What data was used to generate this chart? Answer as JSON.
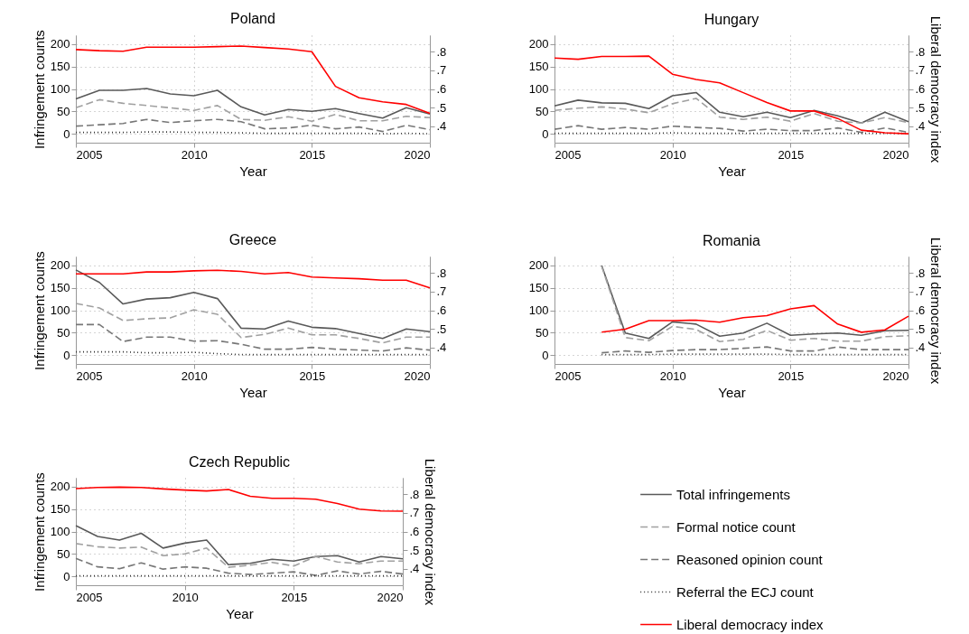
{
  "chart_data": [
    {
      "type": "line",
      "title": "Poland",
      "xlabel": "Year",
      "ylabel": "Infringement counts",
      "x": [
        2005,
        2006,
        2007,
        2008,
        2009,
        2010,
        2011,
        2012,
        2013,
        2014,
        2015,
        2016,
        2017,
        2018,
        2019,
        2020
      ],
      "xlim": [
        2005,
        2020
      ],
      "xticks": [
        2005,
        2010,
        2015,
        2020
      ],
      "ylim": [
        -20,
        220
      ],
      "yticks": [
        0,
        50,
        100,
        150,
        200
      ],
      "y2lim": [
        0.312,
        0.888
      ],
      "y2ticks": [
        {
          "value": 0.4,
          "label": ".4"
        },
        {
          "value": 0.5,
          "label": ".5"
        },
        {
          "value": 0.6,
          "label": ".6"
        },
        {
          "value": 0.7,
          "label": ".7"
        },
        {
          "value": 0.8,
          "label": ".8"
        }
      ],
      "grid": true,
      "legend": false,
      "series": [
        {
          "color": "#595959",
          "line_style": "solid",
          "values": [
            78,
            97,
            97,
            101,
            89,
            85,
            97,
            60,
            42,
            54,
            50,
            56,
            45,
            35,
            58,
            44
          ]
        },
        {
          "color": "#a0a0a0",
          "line_style": "dashed",
          "values": [
            58,
            76,
            68,
            63,
            58,
            52,
            63,
            32,
            30,
            38,
            28,
            43,
            29,
            29,
            39,
            36
          ]
        },
        {
          "color": "#777777",
          "line_style": "dashed",
          "values": [
            17,
            20,
            23,
            32,
            25,
            29,
            32,
            27,
            11,
            13,
            19,
            11,
            15,
            5,
            19,
            9
          ]
        },
        {
          "color": "#333333",
          "line_style": "dotted",
          "values": [
            3,
            3,
            3,
            4,
            4,
            3,
            3,
            2,
            1,
            1,
            1,
            1,
            1,
            0,
            1,
            0
          ]
        },
        {
          "color": "#ff0000",
          "line_style": "solid",
          "axis": "y2",
          "values": [
            0.811,
            0.805,
            0.802,
            0.824,
            0.824,
            0.824,
            0.827,
            0.83,
            0.822,
            0.814,
            0.8,
            0.614,
            0.553,
            0.531,
            0.517,
            0.469
          ]
        }
      ]
    },
    {
      "type": "line",
      "title": "Hungary",
      "xlabel": "Year",
      "y2label": "Liberal democracy index",
      "x": [
        2005,
        2006,
        2007,
        2008,
        2009,
        2010,
        2011,
        2012,
        2013,
        2014,
        2015,
        2016,
        2017,
        2018,
        2019,
        2020
      ],
      "xlim": [
        2005,
        2020
      ],
      "xticks": [
        2005,
        2010,
        2015,
        2020
      ],
      "ylim": [
        -20,
        220
      ],
      "yticks": [
        0,
        50,
        100,
        150,
        200
      ],
      "y2lim": [
        0.312,
        0.888
      ],
      "y2ticks": [
        {
          "value": 0.4,
          "label": ".4"
        },
        {
          "value": 0.5,
          "label": ".5"
        },
        {
          "value": 0.6,
          "label": ".6"
        },
        {
          "value": 0.7,
          "label": ".7"
        },
        {
          "value": 0.8,
          "label": ".8"
        }
      ],
      "grid": true,
      "legend": false,
      "series": [
        {
          "color": "#595959",
          "line_style": "solid",
          "values": [
            62,
            75,
            69,
            68,
            56,
            85,
            92,
            48,
            38,
            48,
            36,
            52,
            40,
            24,
            48,
            27
          ]
        },
        {
          "color": "#a0a0a0",
          "line_style": "dashed",
          "values": [
            52,
            57,
            60,
            55,
            47,
            67,
            79,
            37,
            32,
            37,
            28,
            45,
            28,
            24,
            36,
            25
          ]
        },
        {
          "color": "#777777",
          "line_style": "dashed",
          "values": [
            10,
            18,
            10,
            14,
            10,
            17,
            14,
            12,
            6,
            10,
            7,
            7,
            13,
            3,
            13,
            3
          ]
        },
        {
          "color": "#333333",
          "line_style": "dotted",
          "values": [
            1,
            1,
            1,
            1,
            1,
            2,
            1,
            1,
            1,
            1,
            1,
            1,
            1,
            1,
            1,
            1
          ]
        },
        {
          "color": "#ff0000",
          "line_style": "solid",
          "axis": "y2",
          "values": [
            0.766,
            0.759,
            0.774,
            0.774,
            0.776,
            0.679,
            0.651,
            0.633,
            0.58,
            0.527,
            0.482,
            0.482,
            0.442,
            0.379,
            0.365,
            0.36
          ]
        }
      ]
    },
    {
      "type": "line",
      "title": "Greece",
      "xlabel": "Year",
      "ylabel": "Infringement counts",
      "x": [
        2005,
        2006,
        2007,
        2008,
        2009,
        2010,
        2011,
        2012,
        2013,
        2014,
        2015,
        2016,
        2017,
        2018,
        2019,
        2020
      ],
      "xlim": [
        2005,
        2020
      ],
      "xticks": [
        2005,
        2010,
        2015,
        2020
      ],
      "ylim": [
        -20,
        220
      ],
      "yticks": [
        0,
        50,
        100,
        150,
        200
      ],
      "y2lim": [
        0.312,
        0.888
      ],
      "y2ticks": [
        {
          "value": 0.4,
          "label": ".4"
        },
        {
          "value": 0.5,
          "label": ".5"
        },
        {
          "value": 0.6,
          "label": ".6"
        },
        {
          "value": 0.7,
          "label": ".7"
        },
        {
          "value": 0.8,
          "label": ".8"
        }
      ],
      "grid": true,
      "legend": false,
      "series": [
        {
          "color": "#595959",
          "line_style": "solid",
          "values": [
            190,
            162,
            114,
            125,
            128,
            140,
            126,
            60,
            58,
            76,
            62,
            59,
            48,
            37,
            58,
            52
          ]
        },
        {
          "color": "#a0a0a0",
          "line_style": "dashed",
          "values": [
            115,
            105,
            77,
            81,
            83,
            101,
            91,
            39,
            46,
            60,
            45,
            45,
            37,
            27,
            40,
            40
          ]
        },
        {
          "color": "#777777",
          "line_style": "dashed",
          "values": [
            68,
            68,
            30,
            40,
            40,
            31,
            32,
            24,
            13,
            13,
            17,
            13,
            11,
            9,
            16,
            11
          ]
        },
        {
          "color": "#333333",
          "line_style": "dotted",
          "values": [
            7,
            7,
            7,
            5,
            5,
            6,
            3,
            1,
            1,
            1,
            1,
            1,
            1,
            1,
            1,
            1
          ]
        },
        {
          "color": "#ff0000",
          "line_style": "solid",
          "axis": "y2",
          "values": [
            0.795,
            0.795,
            0.795,
            0.805,
            0.805,
            0.811,
            0.814,
            0.808,
            0.795,
            0.802,
            0.778,
            0.773,
            0.769,
            0.761,
            0.761,
            0.72
          ]
        }
      ]
    },
    {
      "type": "line",
      "title": "Romania",
      "xlabel": "Year",
      "y2label": "Liberal democracy index",
      "x": [
        2007,
        2008,
        2009,
        2010,
        2011,
        2012,
        2013,
        2014,
        2015,
        2016,
        2017,
        2018,
        2019,
        2020
      ],
      "xlim": [
        2005,
        2020
      ],
      "xticks": [
        2005,
        2010,
        2015,
        2020
      ],
      "ylim": [
        -20,
        220
      ],
      "yticks": [
        0,
        50,
        100,
        150,
        200
      ],
      "y2lim": [
        0.312,
        0.888
      ],
      "y2ticks": [
        {
          "value": 0.4,
          "label": ".4"
        },
        {
          "value": 0.5,
          "label": ".5"
        },
        {
          "value": 0.6,
          "label": ".6"
        },
        {
          "value": 0.7,
          "label": ".7"
        },
        {
          "value": 0.8,
          "label": ".8"
        }
      ],
      "grid": true,
      "legend": false,
      "series": [
        {
          "color": "#595959",
          "line_style": "solid",
          "values": [
            200,
            49,
            37,
            74,
            69,
            42,
            49,
            71,
            44,
            47,
            49,
            44,
            54,
            55
          ]
        },
        {
          "color": "#a0a0a0",
          "line_style": "dashed",
          "values": [
            198,
            39,
            32,
            64,
            57,
            30,
            35,
            55,
            33,
            37,
            31,
            31,
            41,
            43
          ]
        },
        {
          "color": "#777777",
          "line_style": "dashed",
          "values": [
            5,
            9,
            6,
            10,
            12,
            12,
            15,
            18,
            9,
            9,
            18,
            12,
            12,
            12
          ]
        },
        {
          "color": "#333333",
          "line_style": "dotted",
          "values": [
            1,
            1,
            1,
            2,
            2,
            2,
            2,
            2,
            1,
            1,
            1,
            1,
            1,
            1
          ]
        },
        {
          "color": "#ff0000",
          "line_style": "solid",
          "axis": "y2",
          "values": [
            0.483,
            0.498,
            0.544,
            0.544,
            0.547,
            0.536,
            0.56,
            0.571,
            0.607,
            0.625,
            0.526,
            0.482,
            0.495,
            0.568
          ]
        }
      ]
    },
    {
      "type": "line",
      "title": "Czech Republic",
      "xlabel": "Year",
      "ylabel": "Infringement counts",
      "y2label": "Liberal democracy index",
      "x": [
        2005,
        2006,
        2007,
        2008,
        2009,
        2010,
        2011,
        2012,
        2013,
        2014,
        2015,
        2016,
        2017,
        2018,
        2019,
        2020
      ],
      "xlim": [
        2005,
        2020
      ],
      "xticks": [
        2005,
        2010,
        2015,
        2020
      ],
      "ylim": [
        -20,
        220
      ],
      "yticks": [
        0,
        50,
        100,
        150,
        200
      ],
      "y2lim": [
        0.312,
        0.888
      ],
      "y2ticks": [
        {
          "value": 0.4,
          "label": ".4"
        },
        {
          "value": 0.5,
          "label": ".5"
        },
        {
          "value": 0.6,
          "label": ".6"
        },
        {
          "value": 0.7,
          "label": ".7"
        },
        {
          "value": 0.8,
          "label": ".8"
        }
      ],
      "grid": true,
      "legend": "right",
      "series": [
        {
          "name": "Total infringements",
          "color": "#595959",
          "line_style": "solid",
          "values": [
            113,
            89,
            81,
            96,
            63,
            74,
            81,
            26,
            29,
            38,
            34,
            44,
            46,
            32,
            44,
            39
          ]
        },
        {
          "name": "Formal notice count",
          "color": "#a0a0a0",
          "line_style": "dashed",
          "values": [
            73,
            66,
            63,
            65,
            46,
            50,
            63,
            20,
            25,
            31,
            23,
            44,
            32,
            28,
            34,
            34
          ]
        },
        {
          "name": "Reasoned opinion count",
          "color": "#777777",
          "line_style": "dashed",
          "values": [
            40,
            21,
            17,
            30,
            16,
            21,
            18,
            7,
            4,
            7,
            10,
            2,
            12,
            5,
            11,
            5
          ]
        },
        {
          "name": "Referral the ECJ count",
          "color": "#333333",
          "line_style": "dotted",
          "values": [
            1,
            1,
            1,
            1,
            1,
            1,
            1,
            1,
            1,
            1,
            1,
            1,
            1,
            1,
            1,
            1
          ]
        },
        {
          "name": "Liberal democracy index",
          "color": "#ff0000",
          "line_style": "solid",
          "axis": "y2",
          "values": [
            0.83,
            0.836,
            0.838,
            0.836,
            0.828,
            0.822,
            0.817,
            0.825,
            0.789,
            0.778,
            0.778,
            0.773,
            0.75,
            0.72,
            0.71,
            0.709
          ]
        }
      ]
    }
  ]
}
